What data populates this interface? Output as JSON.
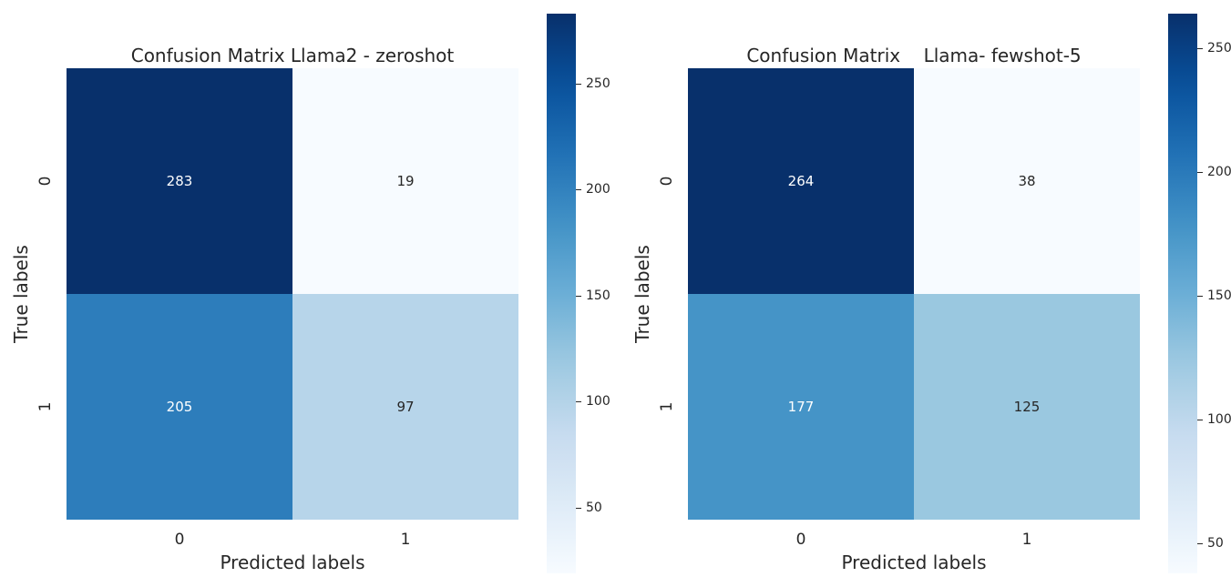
{
  "chart_data": [
    {
      "type": "heatmap",
      "title": "Confusion Matrix Llama2 - zeroshot",
      "xlabel": "Predicted labels",
      "ylabel": "True labels",
      "x_categories": [
        "0",
        "1"
      ],
      "y_categories": [
        "0",
        "1"
      ],
      "values": [
        [
          283,
          19
        ],
        [
          205,
          97
        ]
      ],
      "colormap": "Blues",
      "colorbar": {
        "min": 19,
        "max": 283,
        "ticks": [
          50,
          100,
          150,
          200,
          250
        ]
      }
    },
    {
      "type": "heatmap",
      "title": "Confusion Matrix    Llama- fewshot-5",
      "xlabel": "Predicted labels",
      "ylabel": "True labels",
      "x_categories": [
        "0",
        "1"
      ],
      "y_categories": [
        "0",
        "1"
      ],
      "values": [
        [
          264,
          38
        ],
        [
          177,
          125
        ]
      ],
      "colormap": "Blues",
      "colorbar": {
        "min": 38,
        "max": 264,
        "ticks": [
          50,
          100,
          150,
          200,
          250
        ]
      }
    }
  ]
}
